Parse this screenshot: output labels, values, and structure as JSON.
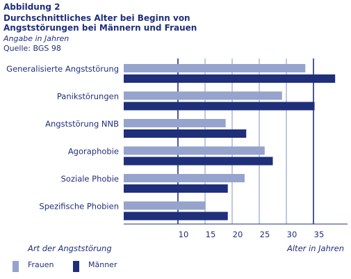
{
  "figure": {
    "label": "Abbildung 2",
    "title": "Durchschnittliches Alter bei Beginn von Angststörungen bei Männern und Frauen",
    "subtitle": "Angabe in Jahren",
    "source": "Quelle: BGS 98"
  },
  "chart_data": {
    "type": "bar",
    "orientation": "horizontal",
    "categories": [
      "Generalisierte Angststörung",
      "Panikstörungen",
      "Angststörung NNB",
      "Agoraphobie",
      "Soziale Phobie",
      "Spezifische Phobien"
    ],
    "series": [
      {
        "name": "Frauen",
        "values": [
          33.5,
          29.2,
          18.8,
          26.0,
          22.3,
          15.1
        ],
        "color": "#95a3cd"
      },
      {
        "name": "Männer",
        "values": [
          39.0,
          35.2,
          22.6,
          27.5,
          19.2,
          19.2
        ],
        "color": "#1f2f7a"
      }
    ],
    "xticks": [
      10,
      15,
      20,
      25,
      30,
      35
    ],
    "xlim": [
      0,
      40
    ],
    "highlight_lines": [
      10,
      35
    ],
    "ylabel": "Art der Angststörung",
    "xlabel": "Alter in Jahren",
    "legend_position": "bottom-left",
    "grid": "vertical"
  },
  "colors": {
    "text": "#1f2f7a",
    "grid": "#95a3cd",
    "grid_strong": "#1f2f7a",
    "frauen": "#95a3cd",
    "maenner": "#1f2f7a"
  }
}
